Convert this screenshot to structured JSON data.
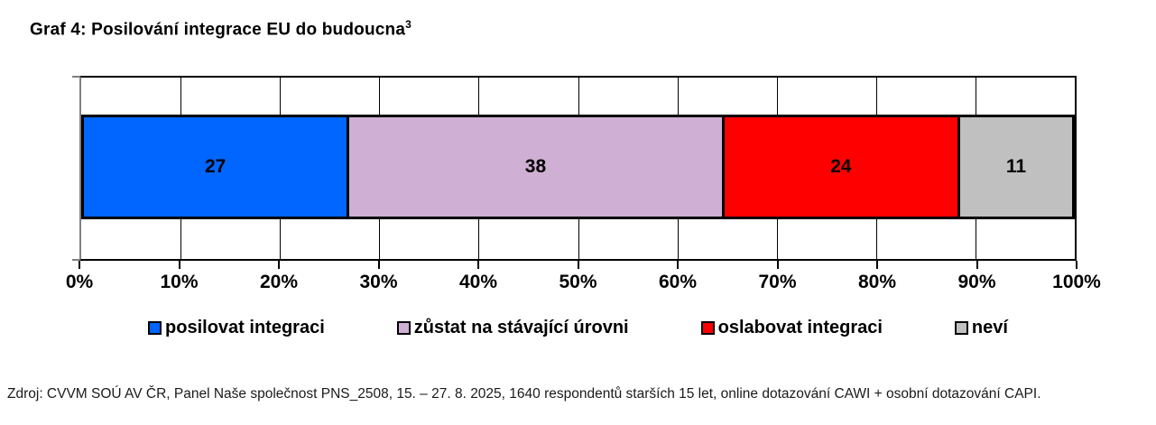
{
  "title": {
    "text": "Graf 4: Posilování integrace EU do budoucna",
    "superscript": "3"
  },
  "chart_data": {
    "type": "bar",
    "subtype": "horizontal-stacked",
    "series": [
      {
        "name": "posilovat integraci",
        "value": 27,
        "color": "#0066FF"
      },
      {
        "name": "zůstat na stávající úrovni",
        "value": 38,
        "color": "#D0AFD4"
      },
      {
        "name": "oslabovat integraci",
        "value": 24,
        "color": "#FF0000"
      },
      {
        "name": "neví",
        "value": 11,
        "color": "#C0C0C0"
      }
    ],
    "x_ticks": [
      "0%",
      "10%",
      "20%",
      "30%",
      "40%",
      "50%",
      "60%",
      "70%",
      "80%",
      "90%",
      "100%"
    ],
    "xlim": [
      0,
      100
    ],
    "xlabel": "",
    "ylabel": "",
    "grid": "vertical",
    "grid_color": "#000000",
    "axis_color": "#808080",
    "bar_border_color": "#000000",
    "legend_position": "bottom"
  },
  "source": "Zdroj: CVVM SOÚ AV ČR, Panel Naše společnost PNS_2508, 15. – 27. 8. 2025, 1640 respondentů starších 15 let, online dotazování CAWI + osobní dotazování CAPI."
}
